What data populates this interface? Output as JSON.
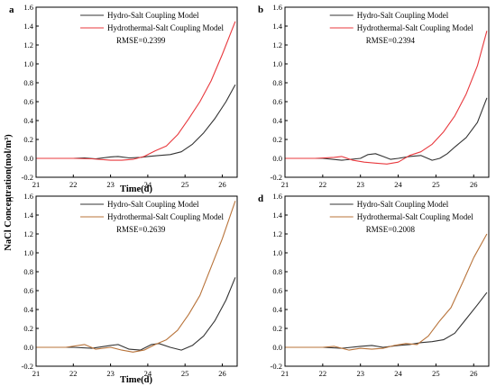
{
  "figure": {
    "ylabel": "NaCl Concentration(mol/m³)",
    "xlabel": "Time(d)"
  },
  "colors": {
    "hydro": "#333333",
    "thermal_red": "#e8383d",
    "thermal_brown": "#b8733a",
    "axis": "#000000"
  },
  "chart_data": [
    {
      "type": "line",
      "panel_label": "a",
      "xlim": [
        21,
        26.4
      ],
      "ylim": [
        -0.2,
        1.6
      ],
      "xticks": [
        "21",
        "22",
        "23",
        "24",
        "25",
        "26"
      ],
      "yticks": [
        "-0.2",
        "0.0",
        "0.2",
        "0.4",
        "0.6",
        "0.8",
        "1.0",
        "1.2",
        "1.4",
        "1.6"
      ],
      "legend": "top-center",
      "rmse": "RMSE=0.2399",
      "series": [
        {
          "name": "Hydro-Salt Coupling Model",
          "color_key": "hydro",
          "x": [
            21.0,
            22.0,
            22.3,
            22.6,
            23.0,
            23.2,
            23.5,
            23.8,
            24.0,
            24.3,
            24.6,
            24.9,
            25.2,
            25.5,
            25.8,
            26.1,
            26.35
          ],
          "y": [
            0.0,
            0.0,
            0.005,
            -0.005,
            0.015,
            0.02,
            0.005,
            0.01,
            0.02,
            0.03,
            0.04,
            0.07,
            0.15,
            0.27,
            0.42,
            0.6,
            0.78
          ]
        },
        {
          "name": "Hydrothermal-Salt Coupling Model",
          "color_key": "thermal_red",
          "x": [
            21.0,
            22.0,
            22.5,
            23.0,
            23.3,
            23.6,
            23.9,
            24.2,
            24.5,
            24.8,
            25.1,
            25.4,
            25.7,
            26.0,
            26.35
          ],
          "y": [
            0.0,
            0.0,
            -0.005,
            -0.02,
            -0.02,
            -0.01,
            0.02,
            0.08,
            0.13,
            0.25,
            0.42,
            0.6,
            0.82,
            1.1,
            1.45
          ]
        }
      ]
    },
    {
      "type": "line",
      "panel_label": "b",
      "xlim": [
        21,
        26.4
      ],
      "ylim": [
        -0.2,
        1.6
      ],
      "xticks": [
        "21",
        "22",
        "23",
        "24",
        "25",
        "26"
      ],
      "yticks": [
        "-0.2",
        "0.0",
        "0.2",
        "0.4",
        "0.6",
        "0.8",
        "1.0",
        "1.2",
        "1.4",
        "1.6"
      ],
      "legend": "top-center",
      "rmse": "RMSE=0.2394",
      "series": [
        {
          "name": "Hydro-Salt Coupling Model",
          "color_key": "hydro",
          "x": [
            21.0,
            22.0,
            22.5,
            23.0,
            23.2,
            23.4,
            23.6,
            23.8,
            24.0,
            24.3,
            24.6,
            24.9,
            25.1,
            25.3,
            25.5,
            25.8,
            26.1,
            26.35
          ],
          "y": [
            0.0,
            0.0,
            -0.02,
            0.0,
            0.04,
            0.05,
            0.02,
            -0.01,
            0.0,
            0.02,
            0.03,
            -0.02,
            0.0,
            0.05,
            0.12,
            0.22,
            0.38,
            0.64
          ]
        },
        {
          "name": "Hydrothermal-Salt Coupling Model",
          "color_key": "thermal_red",
          "x": [
            21.0,
            21.8,
            22.3,
            22.5,
            22.8,
            23.1,
            23.4,
            23.7,
            24.0,
            24.3,
            24.6,
            24.9,
            25.2,
            25.5,
            25.8,
            26.1,
            26.35
          ],
          "y": [
            0.0,
            0.0,
            0.01,
            0.02,
            -0.02,
            -0.04,
            -0.05,
            -0.06,
            -0.04,
            0.03,
            0.07,
            0.15,
            0.28,
            0.45,
            0.68,
            0.98,
            1.35
          ]
        }
      ]
    },
    {
      "type": "line",
      "panel_label": "c",
      "xlim": [
        21,
        26.4
      ],
      "ylim": [
        -0.2,
        1.6
      ],
      "xticks": [
        "21",
        "22",
        "23",
        "24",
        "25",
        "26"
      ],
      "yticks": [
        "-0.2",
        "0.0",
        "0.2",
        "0.4",
        "0.6",
        "0.8",
        "1.0",
        "1.2",
        "1.4",
        "1.6"
      ],
      "legend": "top-center",
      "rmse": "RMSE=0.2639",
      "series": [
        {
          "name": "Hydro-Salt Coupling Model",
          "color_key": "hydro",
          "x": [
            21.0,
            22.0,
            22.5,
            23.0,
            23.2,
            23.5,
            23.8,
            24.1,
            24.3,
            24.6,
            24.9,
            25.2,
            25.5,
            25.8,
            26.1,
            26.35
          ],
          "y": [
            0.0,
            0.0,
            -0.01,
            0.02,
            0.03,
            -0.02,
            -0.03,
            0.03,
            0.04,
            0.0,
            -0.03,
            0.02,
            0.12,
            0.28,
            0.5,
            0.74
          ]
        },
        {
          "name": "Hydrothermal-Salt Coupling Model",
          "color_key": "thermal_brown",
          "x": [
            21.0,
            21.8,
            22.3,
            22.6,
            23.0,
            23.3,
            23.6,
            23.9,
            24.2,
            24.5,
            24.8,
            25.1,
            25.4,
            25.7,
            26.0,
            26.35
          ],
          "y": [
            0.0,
            0.0,
            0.03,
            -0.02,
            0.0,
            -0.03,
            -0.05,
            -0.03,
            0.03,
            0.08,
            0.18,
            0.35,
            0.55,
            0.85,
            1.15,
            1.55
          ]
        }
      ]
    },
    {
      "type": "line",
      "panel_label": "d",
      "xlim": [
        21,
        26.4
      ],
      "ylim": [
        -0.2,
        1.6
      ],
      "xticks": [
        "21",
        "22",
        "23",
        "24",
        "25",
        "26"
      ],
      "yticks": [
        "-0.2",
        "0.0",
        "0.2",
        "0.4",
        "0.6",
        "0.8",
        "1.0",
        "1.2",
        "1.4",
        "1.6"
      ],
      "legend": "top-center",
      "rmse": "RMSE=0.2008",
      "series": [
        {
          "name": "Hydro-Salt Coupling Model",
          "color_key": "hydro",
          "x": [
            21.0,
            22.0,
            22.5,
            23.0,
            23.3,
            23.6,
            24.0,
            24.3,
            24.6,
            24.9,
            25.2,
            25.5,
            25.8,
            26.1,
            26.35
          ],
          "y": [
            0.0,
            0.0,
            -0.01,
            0.01,
            0.02,
            0.0,
            0.02,
            0.03,
            0.05,
            0.06,
            0.08,
            0.15,
            0.3,
            0.45,
            0.58
          ]
        },
        {
          "name": "Hydrothermal-Salt Coupling Model",
          "color_key": "thermal_brown",
          "x": [
            21.0,
            22.0,
            22.3,
            22.7,
            23.0,
            23.3,
            23.6,
            23.9,
            24.2,
            24.5,
            24.8,
            25.1,
            25.4,
            25.7,
            26.0,
            26.35
          ],
          "y": [
            0.0,
            0.0,
            0.01,
            -0.03,
            -0.01,
            -0.02,
            -0.01,
            0.02,
            0.04,
            0.03,
            0.12,
            0.28,
            0.42,
            0.68,
            0.95,
            1.2
          ]
        }
      ]
    }
  ]
}
